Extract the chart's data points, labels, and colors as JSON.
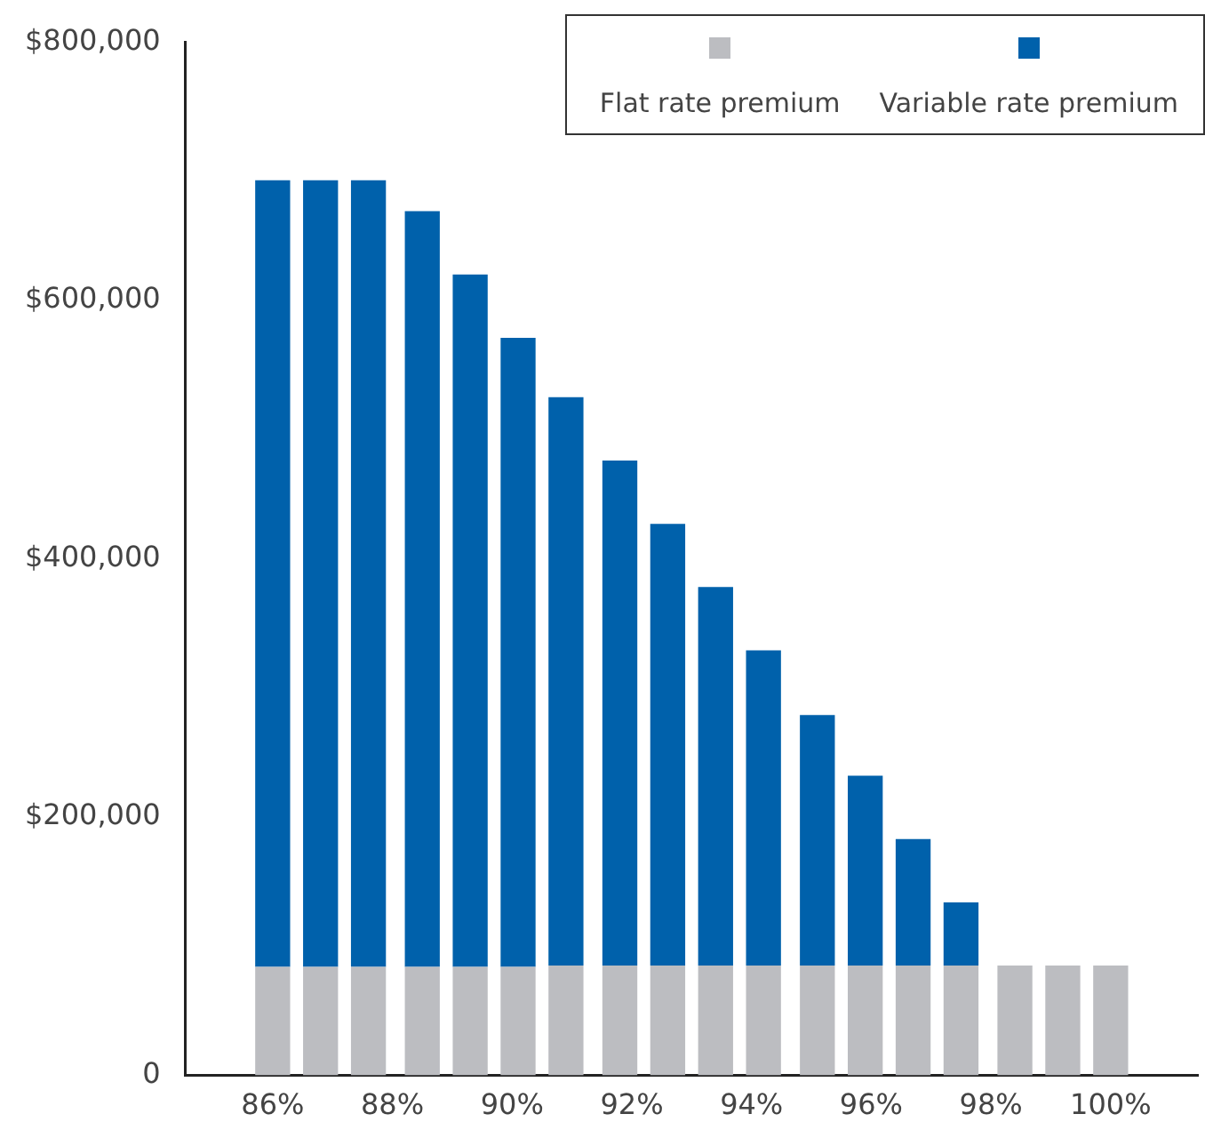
{
  "chart_data": {
    "type": "bar",
    "stacked": true,
    "x": [
      86,
      86.8,
      87.6,
      88.5,
      89.3,
      90.1,
      90.9,
      91.8,
      92.6,
      93.4,
      94.2,
      95.1,
      95.9,
      96.7,
      97.5,
      98.4,
      99.2,
      100
    ],
    "series": [
      {
        "name": "Flat rate premium",
        "color": "#bcbdc1",
        "values": [
          84000,
          84000,
          84000,
          84000,
          84000,
          84000,
          85000,
          85000,
          85000,
          85000,
          85000,
          85000,
          85000,
          85000,
          85000,
          85000,
          85000,
          85000
        ]
      },
      {
        "name": "Variable rate premium",
        "color": "#0061ab",
        "values": [
          609000,
          609000,
          609000,
          585000,
          536000,
          487000,
          440000,
          391000,
          342000,
          293000,
          244000,
          194000,
          147000,
          98000,
          49000,
          0,
          0,
          0
        ]
      }
    ],
    "xlim": [
      85.6,
      100.4
    ],
    "xticks": [
      {
        "value": 86,
        "label": "86%"
      },
      {
        "value": 88,
        "label": "88%"
      },
      {
        "value": 90,
        "label": "90%"
      },
      {
        "value": 92,
        "label": "92%"
      },
      {
        "value": 94,
        "label": "94%"
      },
      {
        "value": 96,
        "label": "96%"
      },
      {
        "value": 98,
        "label": "98%"
      },
      {
        "value": 100,
        "label": "100%"
      }
    ],
    "ylim": [
      0,
      800000
    ],
    "yticks": [
      0,
      {
        "value": 200000,
        "label": "$200,000"
      },
      {
        "value": 400000,
        "label": "$400,000"
      },
      {
        "value": 600000,
        "label": "$600,000"
      },
      {
        "value": 800000,
        "label": "$800,000"
      }
    ],
    "grid": false,
    "legend": "top right"
  }
}
